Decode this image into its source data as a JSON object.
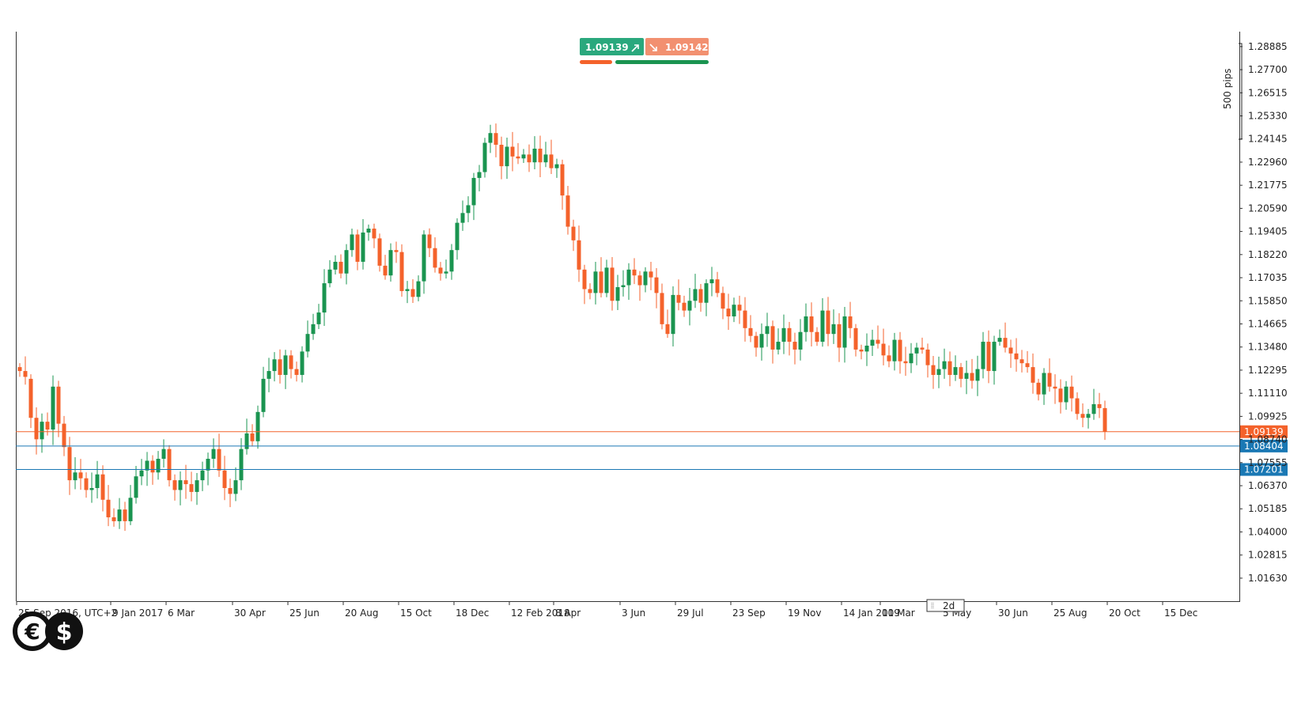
{
  "colors": {
    "bull": "#1a9450",
    "bear": "#f4622b",
    "bid_line": "#f4622b",
    "level_line": "#1a78b4",
    "frame": "#333333",
    "buy_badge": "#2aa87d",
    "sell_badge": "#f29070"
  },
  "quote": {
    "bid": "1.09139",
    "ask": "1.09142",
    "buy_icon": "arrow-up-right-icon",
    "sell_icon": "arrow-down-right-icon"
  },
  "scale_label": "500 pips",
  "timeframe_label": "2d",
  "logo": {
    "icon": "euro-dollar-logo-icon",
    "symbols": [
      "€",
      "$"
    ]
  },
  "chart_data": {
    "type": "candlestick",
    "title": "",
    "xlabel": "",
    "ylabel": "",
    "ylim": [
      1.0045,
      1.2965
    ],
    "y_ticks": [
      "1.28885",
      "1.27700",
      "1.26515",
      "1.25330",
      "1.24145",
      "1.22960",
      "1.21775",
      "1.20590",
      "1.19405",
      "1.18220",
      "1.17035",
      "1.15850",
      "1.14665",
      "1.13480",
      "1.12295",
      "1.11110",
      "1.09925",
      "1.08740",
      "1.07555",
      "1.06370",
      "1.05185",
      "1.04000",
      "1.02815",
      "1.01630"
    ],
    "x_ticks": [
      "25 Sep 2016, UTC+2",
      "9 Jan 2017",
      "6 Mar",
      "30 Apr",
      "25 Jun",
      "20 Aug",
      "15 Oct",
      "18 Dec",
      "12 Feb 2018",
      "8 Apr",
      "3 Jun",
      "29 Jul",
      "23 Sep",
      "19 Nov",
      "14 Jan 2019",
      "10 Mar",
      "5 May",
      "30 Jun",
      "25 Aug",
      "20 Oct",
      "15 Dec"
    ],
    "x_tick_index": [
      0,
      17,
      27,
      39,
      49,
      59,
      69,
      79,
      89,
      97,
      109,
      119,
      129,
      139,
      149,
      156,
      167,
      177,
      187,
      197,
      207
    ],
    "price_lines": [
      {
        "name": "bid",
        "value": 1.09139,
        "label": "1.09139"
      },
      {
        "name": "level",
        "value": 1.08404,
        "label": "1.08404"
      },
      {
        "name": "level",
        "value": 1.07201,
        "label": "1.07201"
      }
    ],
    "close": [
      1.1225,
      1.1195,
      1.0985,
      1.0875,
      1.0965,
      1.0925,
      1.1145,
      1.0955,
      1.0835,
      1.0665,
      1.0705,
      1.0675,
      1.0615,
      1.0625,
      1.0695,
      1.0565,
      1.0475,
      1.0455,
      1.0515,
      1.0455,
      1.0575,
      1.0685,
      1.0715,
      1.0765,
      1.0705,
      1.0775,
      1.0825,
      1.0665,
      1.0615,
      1.0665,
      1.0645,
      1.0605,
      1.0665,
      1.0715,
      1.0775,
      1.0825,
      1.0715,
      1.0625,
      1.0595,
      1.0665,
      1.0825,
      1.0905,
      1.0865,
      1.1015,
      1.1185,
      1.1225,
      1.1285,
      1.1205,
      1.1305,
      1.1235,
      1.1205,
      1.1325,
      1.1415,
      1.1465,
      1.1525,
      1.1675,
      1.1745,
      1.1785,
      1.1725,
      1.1845,
      1.1925,
      1.1785,
      1.1935,
      1.1955,
      1.1905,
      1.1765,
      1.1715,
      1.1845,
      1.1835,
      1.1635,
      1.1645,
      1.1605,
      1.1685,
      1.1925,
      1.1855,
      1.1755,
      1.1725,
      1.1735,
      1.1845,
      1.1985,
      1.2035,
      1.2075,
      1.2215,
      1.2245,
      1.2395,
      1.2445,
      1.2385,
      1.2275,
      1.2375,
      1.2325,
      1.2315,
      1.2335,
      1.2295,
      1.2365,
      1.2295,
      1.2335,
      1.2265,
      1.2285,
      1.2125,
      1.1965,
      1.1895,
      1.1745,
      1.1645,
      1.1625,
      1.1735,
      1.1625,
      1.1755,
      1.1585,
      1.1655,
      1.1665,
      1.1745,
      1.1715,
      1.1665,
      1.1735,
      1.1705,
      1.1625,
      1.1465,
      1.1415,
      1.1615,
      1.1575,
      1.1535,
      1.1585,
      1.1645,
      1.1575,
      1.1675,
      1.1695,
      1.1625,
      1.1545,
      1.1505,
      1.1565,
      1.1535,
      1.1445,
      1.1405,
      1.1345,
      1.1415,
      1.1455,
      1.1335,
      1.1375,
      1.1445,
      1.1375,
      1.1335,
      1.1425,
      1.1505,
      1.1425,
      1.1375,
      1.1535,
      1.1415,
      1.1465,
      1.1345,
      1.1505,
      1.1445,
      1.1335,
      1.1325,
      1.1355,
      1.1385,
      1.1365,
      1.1305,
      1.1275,
      1.1385,
      1.1275,
      1.1265,
      1.1315,
      1.1345,
      1.1335,
      1.1255,
      1.1205,
      1.1235,
      1.1275,
      1.1205,
      1.1245,
      1.1185,
      1.1215,
      1.1175,
      1.1235,
      1.1375,
      1.1225,
      1.1375,
      1.1395,
      1.1345,
      1.1315,
      1.1285,
      1.1265,
      1.1245,
      1.1165,
      1.1105,
      1.1215,
      1.1145,
      1.1135,
      1.1065,
      1.1145,
      1.1085,
      1.1005,
      1.0985,
      1.1005,
      1.1055,
      1.1035,
      1.0914
    ],
    "open": [
      1.1245,
      1.1225,
      1.1185,
      1.0985,
      1.0875,
      1.0965,
      1.0925,
      1.1145,
      1.0955,
      1.0835,
      1.0665,
      1.0705,
      1.0675,
      1.0615,
      1.0625,
      1.0695,
      1.0565,
      1.0475,
      1.0455,
      1.0515,
      1.0455,
      1.0575,
      1.0685,
      1.0715,
      1.0765,
      1.0705,
      1.0775,
      1.0825,
      1.0665,
      1.0615,
      1.0665,
      1.0645,
      1.0605,
      1.0665,
      1.0715,
      1.0775,
      1.0825,
      1.0715,
      1.0625,
      1.0595,
      1.0665,
      1.0825,
      1.0905,
      1.0865,
      1.1015,
      1.1185,
      1.1225,
      1.1285,
      1.1205,
      1.1305,
      1.1235,
      1.1205,
      1.1325,
      1.1415,
      1.1465,
      1.1525,
      1.1675,
      1.1745,
      1.1785,
      1.1725,
      1.1845,
      1.1925,
      1.1785,
      1.1935,
      1.1955,
      1.1905,
      1.1765,
      1.1715,
      1.1845,
      1.1835,
      1.1635,
      1.1645,
      1.1605,
      1.1685,
      1.1925,
      1.1855,
      1.1755,
      1.1725,
      1.1735,
      1.1845,
      1.1985,
      1.2035,
      1.2075,
      1.2215,
      1.2245,
      1.2395,
      1.2445,
      1.2385,
      1.2275,
      1.2375,
      1.2325,
      1.2315,
      1.2335,
      1.2295,
      1.2365,
      1.2295,
      1.2335,
      1.2265,
      1.2285,
      1.2125,
      1.1965,
      1.1895,
      1.1745,
      1.1645,
      1.1625,
      1.1735,
      1.1625,
      1.1755,
      1.1585,
      1.1655,
      1.1665,
      1.1745,
      1.1715,
      1.1665,
      1.1735,
      1.1705,
      1.1625,
      1.1465,
      1.1415,
      1.1615,
      1.1575,
      1.1535,
      1.1585,
      1.1645,
      1.1575,
      1.1675,
      1.1695,
      1.1625,
      1.1545,
      1.1505,
      1.1565,
      1.1535,
      1.1445,
      1.1405,
      1.1345,
      1.1415,
      1.1455,
      1.1335,
      1.1375,
      1.1445,
      1.1375,
      1.1335,
      1.1425,
      1.1505,
      1.1425,
      1.1375,
      1.1535,
      1.1415,
      1.1465,
      1.1345,
      1.1505,
      1.1445,
      1.1335,
      1.1325,
      1.1355,
      1.1385,
      1.1365,
      1.1305,
      1.1275,
      1.1385,
      1.1275,
      1.1265,
      1.1315,
      1.1345,
      1.1335,
      1.1255,
      1.1205,
      1.1235,
      1.1275,
      1.1205,
      1.1245,
      1.1185,
      1.1215,
      1.1175,
      1.1235,
      1.1375,
      1.1225,
      1.1375,
      1.1395,
      1.1345,
      1.1315,
      1.1285,
      1.1265,
      1.1245,
      1.1165,
      1.1105,
      1.1215,
      1.1145,
      1.1135,
      1.1065,
      1.1145,
      1.1085,
      1.1005,
      1.0985,
      1.1005,
      1.1055,
      1.1035
    ]
  }
}
